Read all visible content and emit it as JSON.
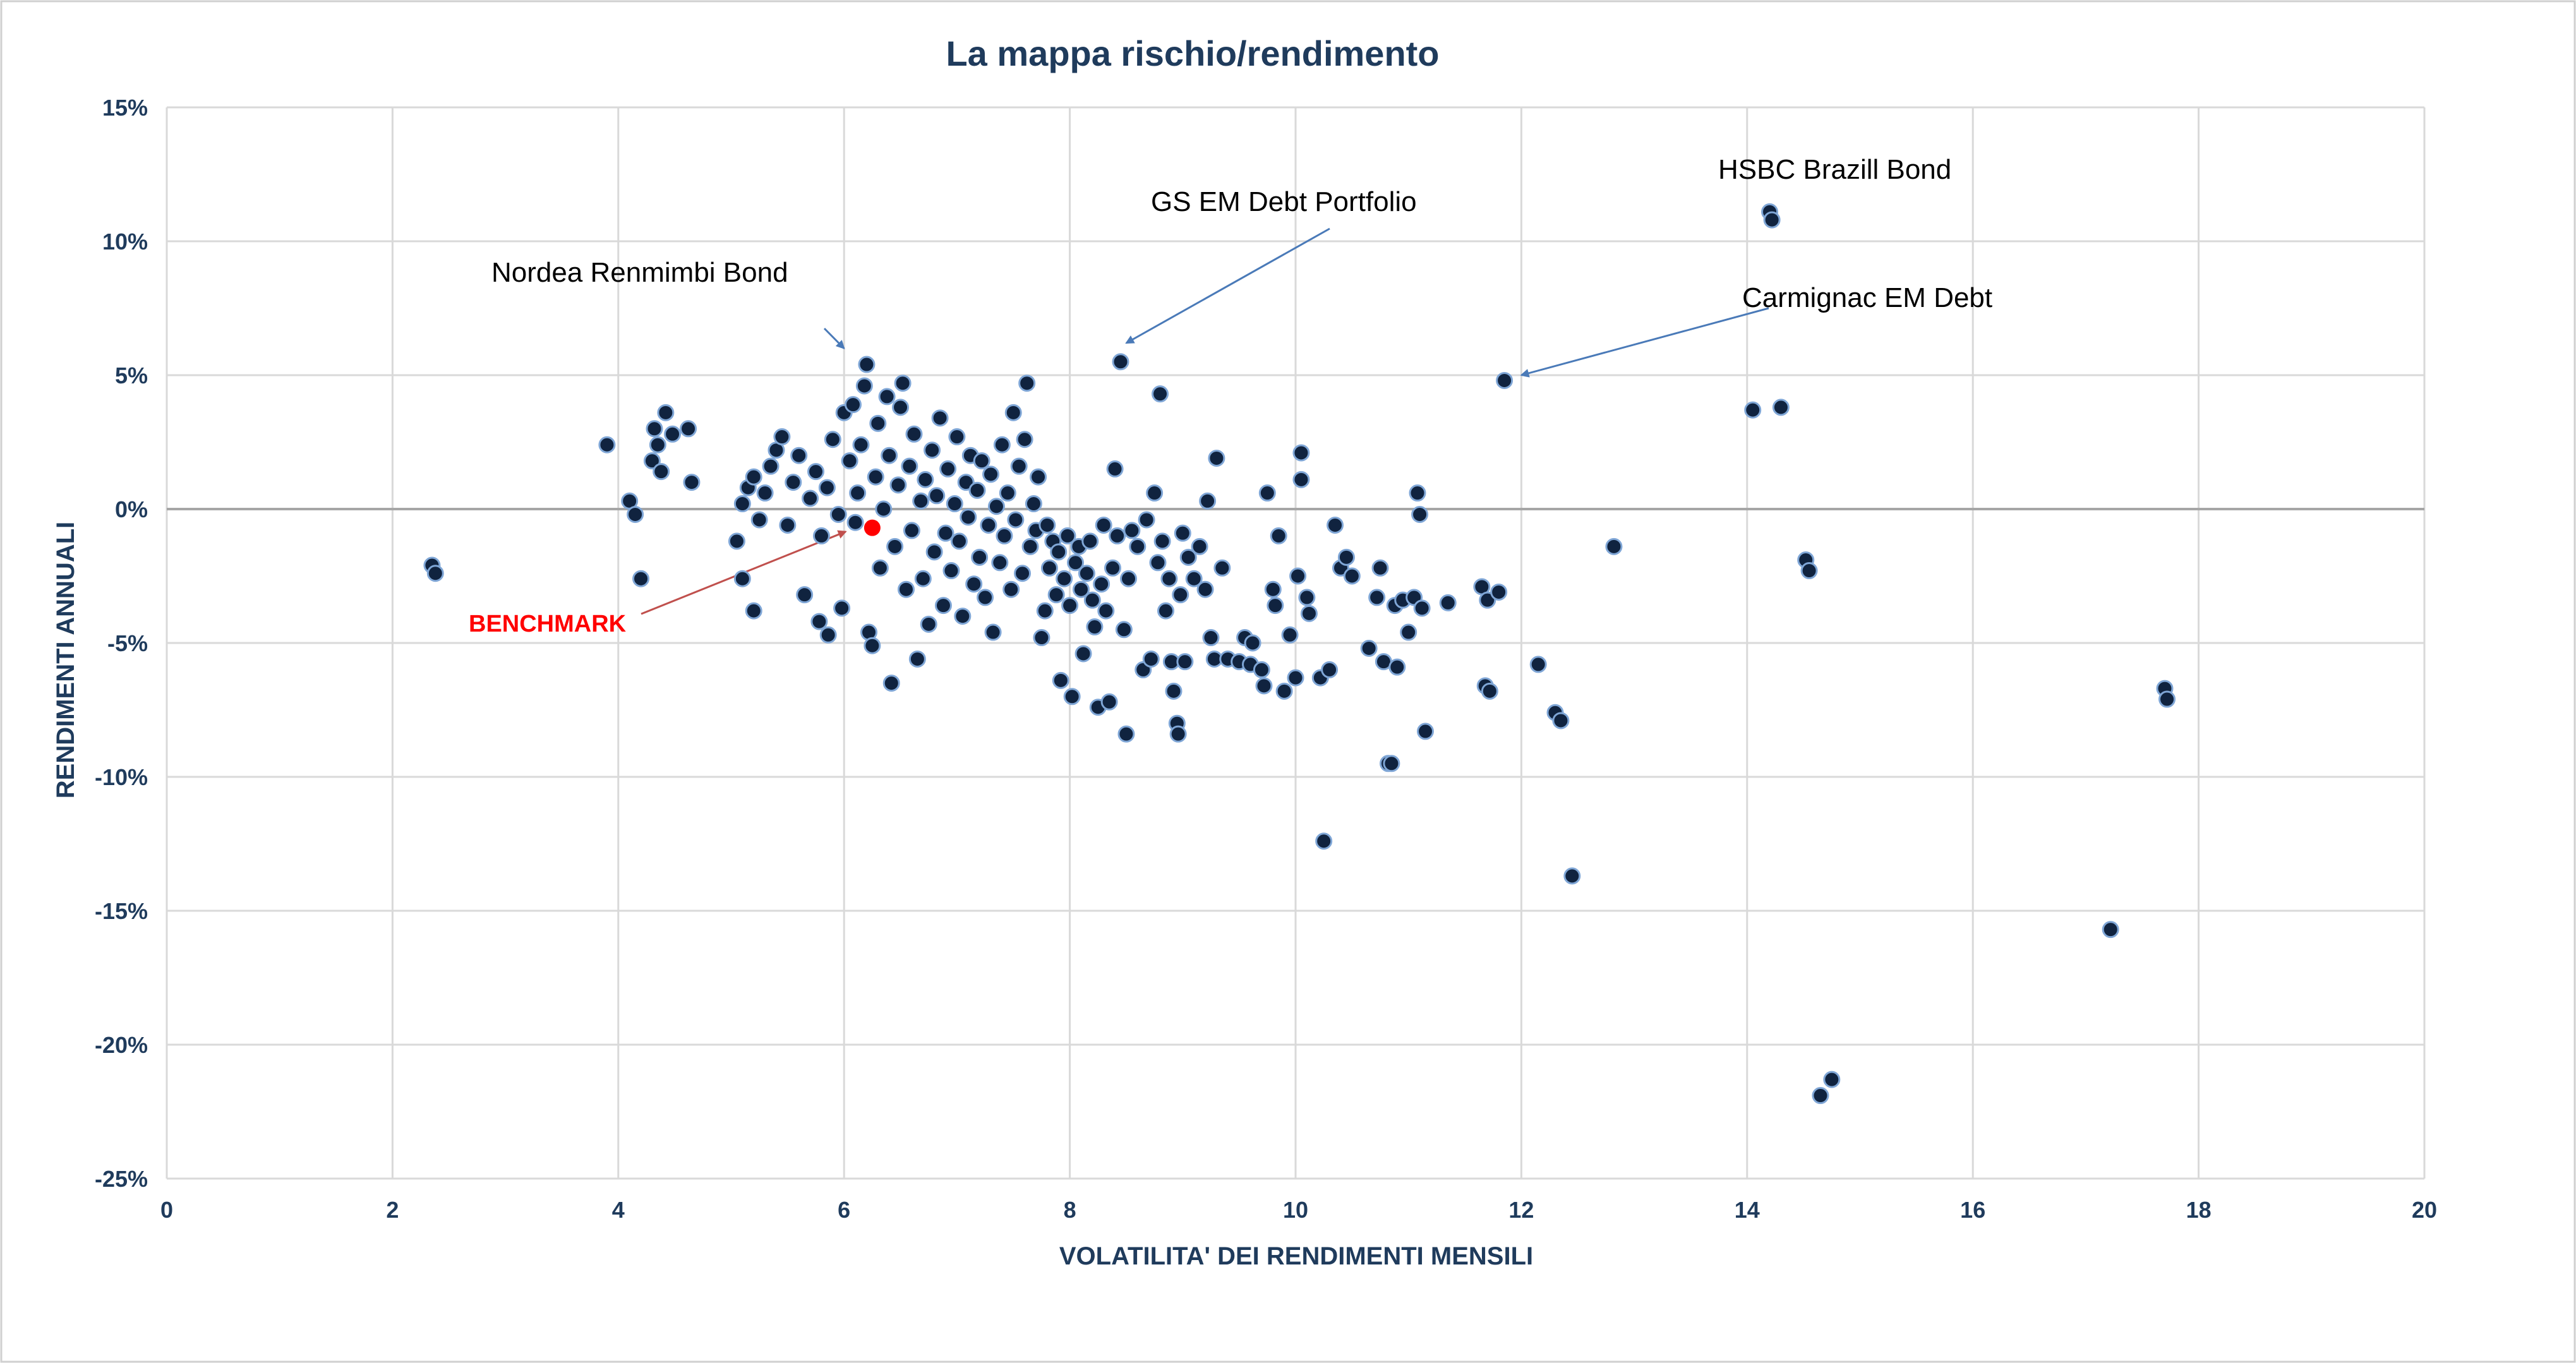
{
  "chart_data": {
    "type": "scatter",
    "title": "La mappa rischio/rendimento",
    "xlabel": "VOLATILITA' DEI RENDIMENTI MENSILI",
    "ylabel": "RENDIMENTI ANNUALI",
    "xlim": [
      0,
      20
    ],
    "ylim": [
      -25,
      15
    ],
    "x_ticks": [
      0,
      2,
      4,
      6,
      8,
      10,
      12,
      14,
      16,
      18,
      20
    ],
    "x_tick_labels": [
      "0",
      "2",
      "4",
      "6",
      "8",
      "10",
      "12",
      "14",
      "16",
      "18",
      "20"
    ],
    "y_ticks": [
      15,
      10,
      5,
      0,
      -5,
      -10,
      -15,
      -20,
      -25
    ],
    "y_tick_labels": [
      "15%",
      "10%",
      "5%",
      "0%",
      "-5%",
      "-10%",
      "-15%",
      "-20%",
      "-25%"
    ],
    "grid": true,
    "colors": {
      "points": "#10233f",
      "point_edge": "#7fa6d6",
      "benchmark": "#ff0000",
      "arrow": "#4a7ab8",
      "title": "#1f3b5c"
    },
    "benchmark": {
      "label": "BENCHMARK",
      "x": 6.25,
      "y": -0.7
    },
    "annotations": [
      {
        "text": "Nordea Renmimbi Bond",
        "x": 6.0,
        "y": 6.0
      },
      {
        "text": "GS EM Debt Portfolio",
        "x": 8.5,
        "y": 6.2
      },
      {
        "text": "HSBC Brazill Bond",
        "x": 14.2,
        "y": 11.0
      },
      {
        "text": "Carmignac EM Debt",
        "x": 12.0,
        "y": 5.0
      }
    ],
    "series": [
      {
        "points": [
          [
            2.35,
            -2.1
          ],
          [
            2.38,
            -2.4
          ],
          [
            3.9,
            2.4
          ],
          [
            4.1,
            0.3
          ],
          [
            4.15,
            -0.2
          ],
          [
            4.2,
            -2.6
          ],
          [
            4.3,
            1.8
          ],
          [
            4.32,
            3.0
          ],
          [
            4.35,
            2.4
          ],
          [
            4.38,
            1.4
          ],
          [
            4.42,
            3.6
          ],
          [
            4.48,
            2.8
          ],
          [
            4.62,
            3.0
          ],
          [
            4.65,
            1.0
          ],
          [
            5.05,
            -1.2
          ],
          [
            5.1,
            -2.6
          ],
          [
            5.2,
            -3.8
          ],
          [
            5.1,
            0.2
          ],
          [
            5.15,
            0.8
          ],
          [
            5.2,
            1.2
          ],
          [
            5.25,
            -0.4
          ],
          [
            5.3,
            0.6
          ],
          [
            5.35,
            1.6
          ],
          [
            5.4,
            2.2
          ],
          [
            5.45,
            2.7
          ],
          [
            5.5,
            -0.6
          ],
          [
            5.55,
            1.0
          ],
          [
            5.6,
            2.0
          ],
          [
            5.65,
            -3.2
          ],
          [
            5.7,
            0.4
          ],
          [
            5.75,
            1.4
          ],
          [
            5.8,
            -1.0
          ],
          [
            5.85,
            0.8
          ],
          [
            5.9,
            2.6
          ],
          [
            5.95,
            -0.2
          ],
          [
            5.78,
            -4.2
          ],
          [
            5.86,
            -4.7
          ],
          [
            5.98,
            -3.7
          ],
          [
            6.0,
            3.6
          ],
          [
            6.05,
            1.8
          ],
          [
            6.08,
            3.9
          ],
          [
            6.1,
            -0.5
          ],
          [
            6.12,
            0.6
          ],
          [
            6.15,
            2.4
          ],
          [
            6.18,
            4.6
          ],
          [
            6.2,
            5.4
          ],
          [
            6.22,
            -4.6
          ],
          [
            6.25,
            -5.1
          ],
          [
            6.28,
            1.2
          ],
          [
            6.3,
            3.2
          ],
          [
            6.32,
            -2.2
          ],
          [
            6.35,
            0.0
          ],
          [
            6.38,
            4.2
          ],
          [
            6.4,
            2.0
          ],
          [
            6.42,
            -6.5
          ],
          [
            6.45,
            -1.4
          ],
          [
            6.48,
            0.9
          ],
          [
            6.5,
            3.8
          ],
          [
            6.52,
            4.7
          ],
          [
            6.55,
            -3.0
          ],
          [
            6.58,
            1.6
          ],
          [
            6.6,
            -0.8
          ],
          [
            6.62,
            2.8
          ],
          [
            6.65,
            -5.6
          ],
          [
            6.68,
            0.3
          ],
          [
            6.7,
            -2.6
          ],
          [
            6.72,
            1.1
          ],
          [
            6.75,
            -4.3
          ],
          [
            6.78,
            2.2
          ],
          [
            6.8,
            -1.6
          ],
          [
            6.82,
            0.5
          ],
          [
            6.85,
            3.4
          ],
          [
            6.88,
            -3.6
          ],
          [
            6.9,
            -0.9
          ],
          [
            6.92,
            1.5
          ],
          [
            6.95,
            -2.3
          ],
          [
            6.98,
            0.2
          ],
          [
            7.0,
            2.7
          ],
          [
            7.02,
            -1.2
          ],
          [
            7.05,
            -4.0
          ],
          [
            7.08,
            1.0
          ],
          [
            7.1,
            -0.3
          ],
          [
            7.12,
            2.0
          ],
          [
            7.15,
            -2.8
          ],
          [
            7.18,
            0.7
          ],
          [
            7.2,
            -1.8
          ],
          [
            7.22,
            1.8
          ],
          [
            7.25,
            -3.3
          ],
          [
            7.28,
            -0.6
          ],
          [
            7.3,
            1.3
          ],
          [
            7.32,
            -4.6
          ],
          [
            7.35,
            0.1
          ],
          [
            7.38,
            -2.0
          ],
          [
            7.4,
            2.4
          ],
          [
            7.42,
            -1.0
          ],
          [
            7.45,
            0.6
          ],
          [
            7.48,
            -3.0
          ],
          [
            7.5,
            3.6
          ],
          [
            7.52,
            -0.4
          ],
          [
            7.55,
            1.6
          ],
          [
            7.58,
            -2.4
          ],
          [
            7.6,
            2.6
          ],
          [
            7.62,
            4.7
          ],
          [
            7.65,
            -1.4
          ],
          [
            7.68,
            0.2
          ],
          [
            7.7,
            -0.8
          ],
          [
            7.72,
            1.2
          ],
          [
            7.75,
            -4.8
          ],
          [
            7.78,
            -3.8
          ],
          [
            7.8,
            -0.6
          ],
          [
            7.82,
            -2.2
          ],
          [
            7.85,
            -1.2
          ],
          [
            7.88,
            -3.2
          ],
          [
            7.9,
            -1.6
          ],
          [
            7.92,
            -6.4
          ],
          [
            7.95,
            -2.6
          ],
          [
            7.98,
            -1.0
          ],
          [
            8.0,
            -3.6
          ],
          [
            8.02,
            -7.0
          ],
          [
            8.05,
            -2.0
          ],
          [
            8.08,
            -1.4
          ],
          [
            8.1,
            -3.0
          ],
          [
            8.12,
            -5.4
          ],
          [
            8.15,
            -2.4
          ],
          [
            8.18,
            -1.2
          ],
          [
            8.2,
            -3.4
          ],
          [
            8.22,
            -4.4
          ],
          [
            8.25,
            -7.4
          ],
          [
            8.28,
            -2.8
          ],
          [
            8.3,
            -0.6
          ],
          [
            8.32,
            -3.8
          ],
          [
            8.35,
            -7.2
          ],
          [
            8.38,
            -2.2
          ],
          [
            8.4,
            1.5
          ],
          [
            8.42,
            -1.0
          ],
          [
            8.45,
            5.5
          ],
          [
            8.48,
            -4.5
          ],
          [
            8.5,
            -8.4
          ],
          [
            8.52,
            -2.6
          ],
          [
            8.55,
            -0.8
          ],
          [
            8.6,
            -1.4
          ],
          [
            8.65,
            -6.0
          ],
          [
            8.68,
            -0.4
          ],
          [
            8.72,
            -5.6
          ],
          [
            8.75,
            0.6
          ],
          [
            8.78,
            -2.0
          ],
          [
            8.8,
            4.3
          ],
          [
            8.82,
            -1.2
          ],
          [
            8.85,
            -3.8
          ],
          [
            8.88,
            -2.6
          ],
          [
            8.9,
            -5.7
          ],
          [
            8.92,
            -6.8
          ],
          [
            8.95,
            -8.0
          ],
          [
            8.96,
            -8.4
          ],
          [
            8.98,
            -3.2
          ],
          [
            9.0,
            -0.9
          ],
          [
            9.02,
            -5.7
          ],
          [
            9.05,
            -1.8
          ],
          [
            9.1,
            -2.6
          ],
          [
            9.15,
            -1.4
          ],
          [
            9.2,
            -3.0
          ],
          [
            9.22,
            0.3
          ],
          [
            9.25,
            -4.8
          ],
          [
            9.28,
            -5.6
          ],
          [
            9.3,
            1.9
          ],
          [
            9.35,
            -2.2
          ],
          [
            9.4,
            -5.6
          ],
          [
            9.5,
            -5.7
          ],
          [
            9.55,
            -4.8
          ],
          [
            9.6,
            -5.8
          ],
          [
            9.62,
            -5.0
          ],
          [
            9.7,
            -6.0
          ],
          [
            9.72,
            -6.6
          ],
          [
            9.75,
            0.6
          ],
          [
            9.8,
            -3.0
          ],
          [
            9.82,
            -3.6
          ],
          [
            9.85,
            -1.0
          ],
          [
            9.9,
            -6.8
          ],
          [
            9.95,
            -4.7
          ],
          [
            10.0,
            -6.3
          ],
          [
            10.02,
            -2.5
          ],
          [
            10.05,
            1.1
          ],
          [
            10.05,
            2.1
          ],
          [
            10.1,
            -3.3
          ],
          [
            10.12,
            -3.9
          ],
          [
            10.22,
            -6.3
          ],
          [
            10.25,
            -12.4
          ],
          [
            10.3,
            -6.0
          ],
          [
            10.35,
            -0.6
          ],
          [
            10.4,
            -2.2
          ],
          [
            10.45,
            -1.8
          ],
          [
            10.5,
            -2.5
          ],
          [
            10.65,
            -5.2
          ],
          [
            10.72,
            -3.3
          ],
          [
            10.75,
            -2.2
          ],
          [
            10.78,
            -5.7
          ],
          [
            10.82,
            -9.5
          ],
          [
            10.85,
            -9.5
          ],
          [
            10.88,
            -3.6
          ],
          [
            10.9,
            -5.9
          ],
          [
            10.95,
            -3.4
          ],
          [
            11.0,
            -4.6
          ],
          [
            11.05,
            -3.3
          ],
          [
            11.08,
            0.6
          ],
          [
            11.1,
            -0.2
          ],
          [
            11.12,
            -3.7
          ],
          [
            11.15,
            -8.3
          ],
          [
            11.35,
            -3.5
          ],
          [
            11.65,
            -2.9
          ],
          [
            11.68,
            -6.6
          ],
          [
            11.7,
            -3.4
          ],
          [
            11.72,
            -6.8
          ],
          [
            11.8,
            -3.1
          ],
          [
            12.15,
            -5.8
          ],
          [
            12.3,
            -7.6
          ],
          [
            12.35,
            -7.9
          ],
          [
            12.45,
            -13.7
          ],
          [
            12.82,
            -1.4
          ],
          [
            14.05,
            3.7
          ],
          [
            14.3,
            3.8
          ],
          [
            14.52,
            -1.9
          ],
          [
            14.55,
            -2.3
          ],
          [
            14.65,
            -21.9
          ],
          [
            14.75,
            -21.3
          ],
          [
            17.22,
            -15.7
          ],
          [
            17.7,
            -6.7
          ],
          [
            17.72,
            -7.1
          ],
          [
            14.2,
            11.1
          ],
          [
            14.22,
            10.8
          ],
          [
            11.85,
            4.8
          ]
        ]
      }
    ]
  }
}
